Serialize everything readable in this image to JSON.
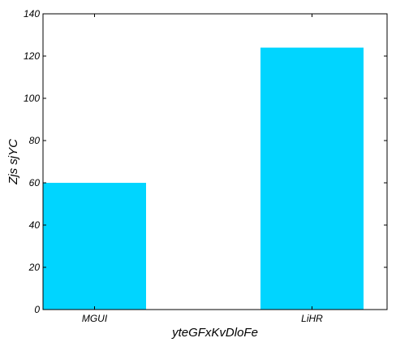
{
  "chart_data": {
    "type": "bar",
    "title": "",
    "xlabel": "yteGFxKvDloFe",
    "ylabel": "Zjs sjYC",
    "categories": [
      "MGUI",
      "LiHR"
    ],
    "values": [
      60,
      124
    ],
    "ylim": [
      0,
      140
    ],
    "yticks": [
      0,
      20,
      40,
      60,
      80,
      100,
      120,
      140
    ],
    "bar_color": "#00d5ff",
    "grid": false,
    "legend": "none"
  }
}
